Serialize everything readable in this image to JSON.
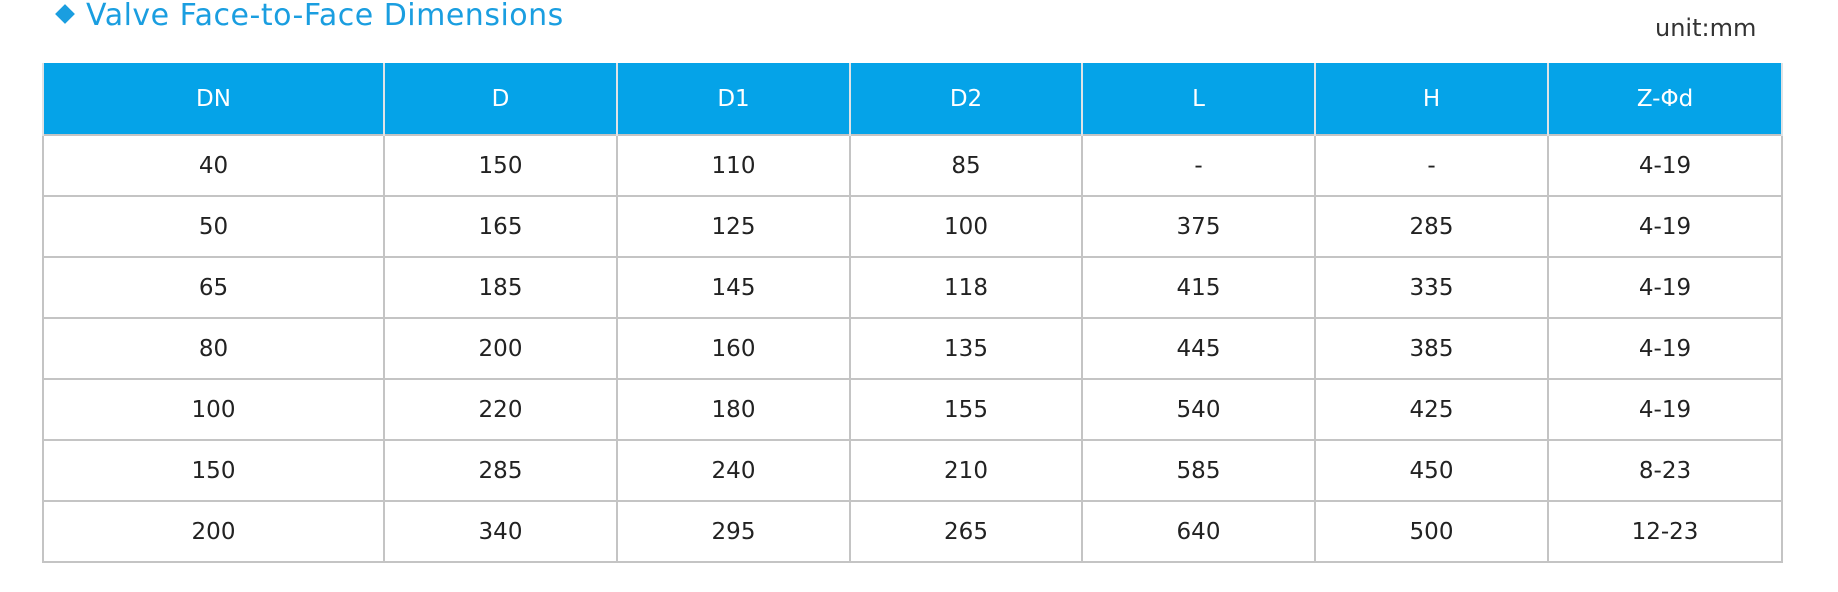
{
  "header": {
    "title": "Valve Face-to-Face Dimensions",
    "unit": "unit:mm"
  },
  "table": {
    "columns": [
      "DN",
      "D",
      "D1",
      "D2",
      "L",
      "H",
      "Z-Φd"
    ],
    "rows": [
      [
        40,
        150,
        110,
        85,
        "-",
        "-",
        "4-19"
      ],
      [
        50,
        165,
        125,
        100,
        375,
        285,
        "4-19"
      ],
      [
        65,
        185,
        145,
        118,
        415,
        335,
        "4-19"
      ],
      [
        80,
        200,
        160,
        135,
        445,
        385,
        "4-19"
      ],
      [
        100,
        220,
        180,
        155,
        540,
        425,
        "4-19"
      ],
      [
        150,
        285,
        240,
        210,
        585,
        450,
        "8-23"
      ],
      [
        200,
        340,
        295,
        265,
        640,
        500,
        "12-23"
      ]
    ]
  }
}
